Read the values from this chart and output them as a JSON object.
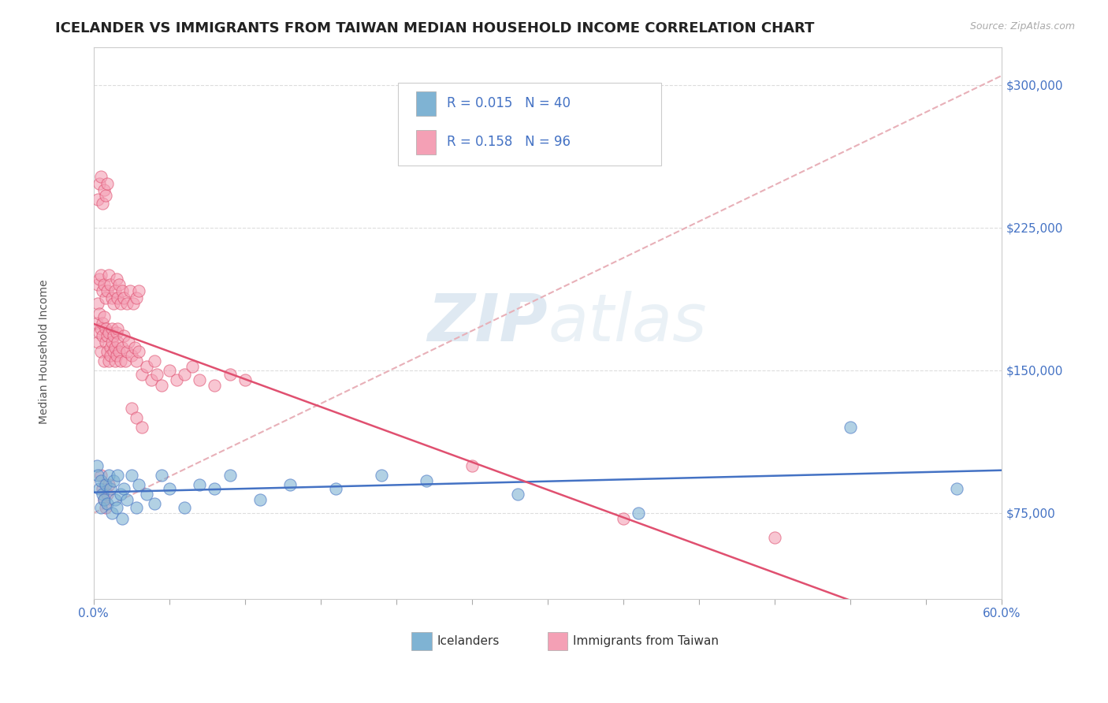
{
  "title": "ICELANDER VS IMMIGRANTS FROM TAIWAN MEDIAN HOUSEHOLD INCOME CORRELATION CHART",
  "source_text": "Source: ZipAtlas.com",
  "ylabel": "Median Household Income",
  "xlim": [
    0.0,
    0.6
  ],
  "ylim": [
    30000,
    320000
  ],
  "yticks": [
    75000,
    150000,
    225000,
    300000
  ],
  "ytick_labels": [
    "$75,000",
    "$150,000",
    "$225,000",
    "$300,000"
  ],
  "watermark_zip": "ZIP",
  "watermark_atlas": "atlas",
  "color_blue": "#7fb3d3",
  "color_pink": "#f4a0b5",
  "color_blue_line": "#4472c4",
  "color_pink_line": "#e05070",
  "color_dashed": "#e8b0b8",
  "title_fontsize": 13,
  "label_fontsize": 10,
  "tick_fontsize": 11,
  "legend_color": "#4472c4",
  "icelanders_x": [
    0.002,
    0.003,
    0.004,
    0.005,
    0.005,
    0.006,
    0.007,
    0.008,
    0.009,
    0.01,
    0.011,
    0.012,
    0.013,
    0.014,
    0.015,
    0.016,
    0.018,
    0.019,
    0.02,
    0.022,
    0.025,
    0.028,
    0.03,
    0.035,
    0.04,
    0.045,
    0.05,
    0.06,
    0.07,
    0.08,
    0.09,
    0.11,
    0.13,
    0.16,
    0.19,
    0.22,
    0.28,
    0.36,
    0.5,
    0.57
  ],
  "icelanders_y": [
    100000,
    95000,
    88000,
    92000,
    78000,
    85000,
    82000,
    90000,
    80000,
    95000,
    88000,
    75000,
    92000,
    82000,
    78000,
    95000,
    85000,
    72000,
    88000,
    82000,
    95000,
    78000,
    90000,
    85000,
    80000,
    95000,
    88000,
    78000,
    90000,
    88000,
    95000,
    82000,
    90000,
    88000,
    95000,
    92000,
    85000,
    75000,
    120000,
    88000
  ],
  "taiwan_x": [
    0.002,
    0.003,
    0.003,
    0.004,
    0.004,
    0.005,
    0.005,
    0.006,
    0.006,
    0.007,
    0.007,
    0.008,
    0.008,
    0.009,
    0.009,
    0.01,
    0.01,
    0.011,
    0.011,
    0.012,
    0.012,
    0.013,
    0.013,
    0.014,
    0.014,
    0.015,
    0.015,
    0.016,
    0.016,
    0.017,
    0.018,
    0.019,
    0.02,
    0.021,
    0.022,
    0.023,
    0.025,
    0.027,
    0.028,
    0.03,
    0.032,
    0.035,
    0.038,
    0.04,
    0.042,
    0.045,
    0.05,
    0.055,
    0.06,
    0.065,
    0.07,
    0.08,
    0.09,
    0.1,
    0.003,
    0.004,
    0.005,
    0.006,
    0.007,
    0.008,
    0.009,
    0.01,
    0.011,
    0.012,
    0.013,
    0.014,
    0.015,
    0.016,
    0.017,
    0.018,
    0.019,
    0.02,
    0.022,
    0.024,
    0.026,
    0.028,
    0.03,
    0.025,
    0.028,
    0.032,
    0.003,
    0.004,
    0.005,
    0.006,
    0.007,
    0.008,
    0.009,
    0.25,
    0.35,
    0.45,
    0.005,
    0.006,
    0.007,
    0.008,
    0.009,
    0.01
  ],
  "taiwan_y": [
    175000,
    185000,
    165000,
    170000,
    180000,
    160000,
    172000,
    168000,
    175000,
    155000,
    178000,
    165000,
    172000,
    160000,
    168000,
    155000,
    170000,
    162000,
    158000,
    172000,
    165000,
    160000,
    168000,
    155000,
    162000,
    170000,
    158000,
    165000,
    172000,
    160000,
    155000,
    162000,
    168000,
    155000,
    160000,
    165000,
    158000,
    162000,
    155000,
    160000,
    148000,
    152000,
    145000,
    155000,
    148000,
    142000,
    150000,
    145000,
    148000,
    152000,
    145000,
    142000,
    148000,
    145000,
    195000,
    198000,
    200000,
    192000,
    195000,
    188000,
    192000,
    200000,
    195000,
    188000,
    185000,
    192000,
    198000,
    188000,
    195000,
    185000,
    192000,
    188000,
    185000,
    192000,
    185000,
    188000,
    192000,
    130000,
    125000,
    120000,
    240000,
    248000,
    252000,
    238000,
    245000,
    242000,
    248000,
    100000,
    72000,
    62000,
    95000,
    88000,
    82000,
    78000,
    85000,
    90000
  ]
}
